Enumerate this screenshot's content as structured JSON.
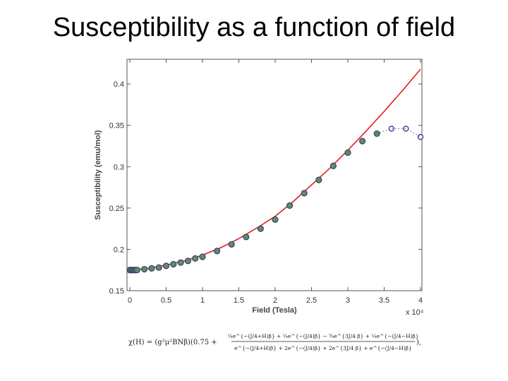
{
  "slide": {
    "title": "Susceptibility as a function of field"
  },
  "colors": {
    "fit_line": "#e02020",
    "marker_edge": "#3a3a7a",
    "marker_fill_filled": "#5f8f5f",
    "marker_fill_open": "#ffffff",
    "open_marker_edge": "#3a3aa0"
  },
  "formula": {
    "lhs": "χ(H) = (g²μ²BNβ)(0.75 +",
    "numerator": "¼e^{−(J/4+H)β} + ¼e^{−(J/4)β} − ¾e^{3J/4 β} + ¼e^{−(J/4−H)β}",
    "denominator": "e^{−(J/4+H)β} + 2e^{−(J/4)β} + 2e^{3J/4 β} + e^{−(J/4−H)β}",
    "tail": "),"
  },
  "chart_data": {
    "type": "scatter",
    "title": "",
    "xlabel": "Field (Tesla)",
    "ylabel": "Susceptibility (emu/mol)",
    "x_multiplier": "x 10⁴",
    "xlim": [
      0,
      4
    ],
    "ylim": [
      0.15,
      0.43
    ],
    "xticks": [
      0,
      0.5,
      1,
      1.5,
      2,
      2.5,
      3,
      3.5,
      4
    ],
    "xtick_labels": [
      "0",
      "0.5",
      "1",
      "1.5",
      "2",
      "2.5",
      "3",
      "3.5",
      "4"
    ],
    "yticks": [
      0.15,
      0.2,
      0.25,
      0.3,
      0.35,
      0.4
    ],
    "ytick_labels": [
      "0.15",
      "0.2",
      "0.25",
      "0.3",
      "0.35",
      "0.4"
    ],
    "grid": false,
    "series": [
      {
        "style": "fit-line",
        "x": [
          0,
          0.25,
          0.5,
          0.75,
          1.0,
          1.25,
          1.5,
          1.75,
          2.0,
          2.25,
          2.5,
          2.75,
          3.0,
          3.25,
          3.5,
          3.75,
          4.0
        ],
        "y": [
          0.175,
          0.177,
          0.181,
          0.186,
          0.193,
          0.202,
          0.213,
          0.226,
          0.24,
          0.258,
          0.278,
          0.298,
          0.32,
          0.343,
          0.367,
          0.392,
          0.418
        ]
      },
      {
        "style": "filled-markers",
        "x": [
          0,
          0.02,
          0.04,
          0.06,
          0.08,
          0.1,
          0.2,
          0.3,
          0.4,
          0.5,
          0.6,
          0.7,
          0.8,
          0.9,
          1.0,
          1.2,
          1.4,
          1.6,
          1.8,
          2.0,
          2.2,
          2.4,
          2.6,
          2.8,
          3.0,
          3.2,
          3.4
        ],
        "y": [
          0.175,
          0.175,
          0.175,
          0.175,
          0.175,
          0.175,
          0.176,
          0.177,
          0.178,
          0.18,
          0.182,
          0.184,
          0.186,
          0.189,
          0.191,
          0.198,
          0.206,
          0.215,
          0.225,
          0.236,
          0.253,
          0.268,
          0.284,
          0.301,
          0.317,
          0.331,
          0.34
        ]
      },
      {
        "style": "open-markers",
        "x": [
          3.6,
          3.8,
          4.0
        ],
        "y": [
          0.346,
          0.346,
          0.336
        ]
      }
    ]
  }
}
